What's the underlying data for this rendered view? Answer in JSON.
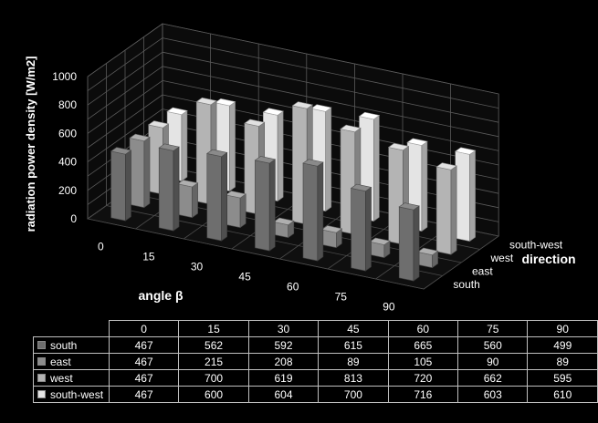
{
  "chart_data": {
    "type": "bar",
    "variant": "3d-column",
    "title": "",
    "ylabel": "radiation power density [W/m2]",
    "xlabel": "angle β",
    "zlabel": "direction",
    "ylim": [
      0,
      1000
    ],
    "yticks": [
      "0",
      "200",
      "400",
      "600",
      "800",
      "1000"
    ],
    "categories": [
      "0",
      "15",
      "30",
      "45",
      "60",
      "75",
      "90"
    ],
    "grid": true,
    "series": [
      {
        "name": "south",
        "color": "#6e6e6e",
        "values": [
          467,
          562,
          592,
          615,
          665,
          560,
          499
        ]
      },
      {
        "name": "east",
        "color": "#8c8c8c",
        "values": [
          467,
          215,
          208,
          89,
          105,
          90,
          89
        ]
      },
      {
        "name": "west",
        "color": "#b4b4b4",
        "values": [
          467,
          700,
          619,
          813,
          720,
          662,
          595
        ]
      },
      {
        "name": "south-west",
        "color": "#e4e4e4",
        "values": [
          467,
          600,
          604,
          700,
          716,
          603,
          610
        ]
      }
    ]
  }
}
